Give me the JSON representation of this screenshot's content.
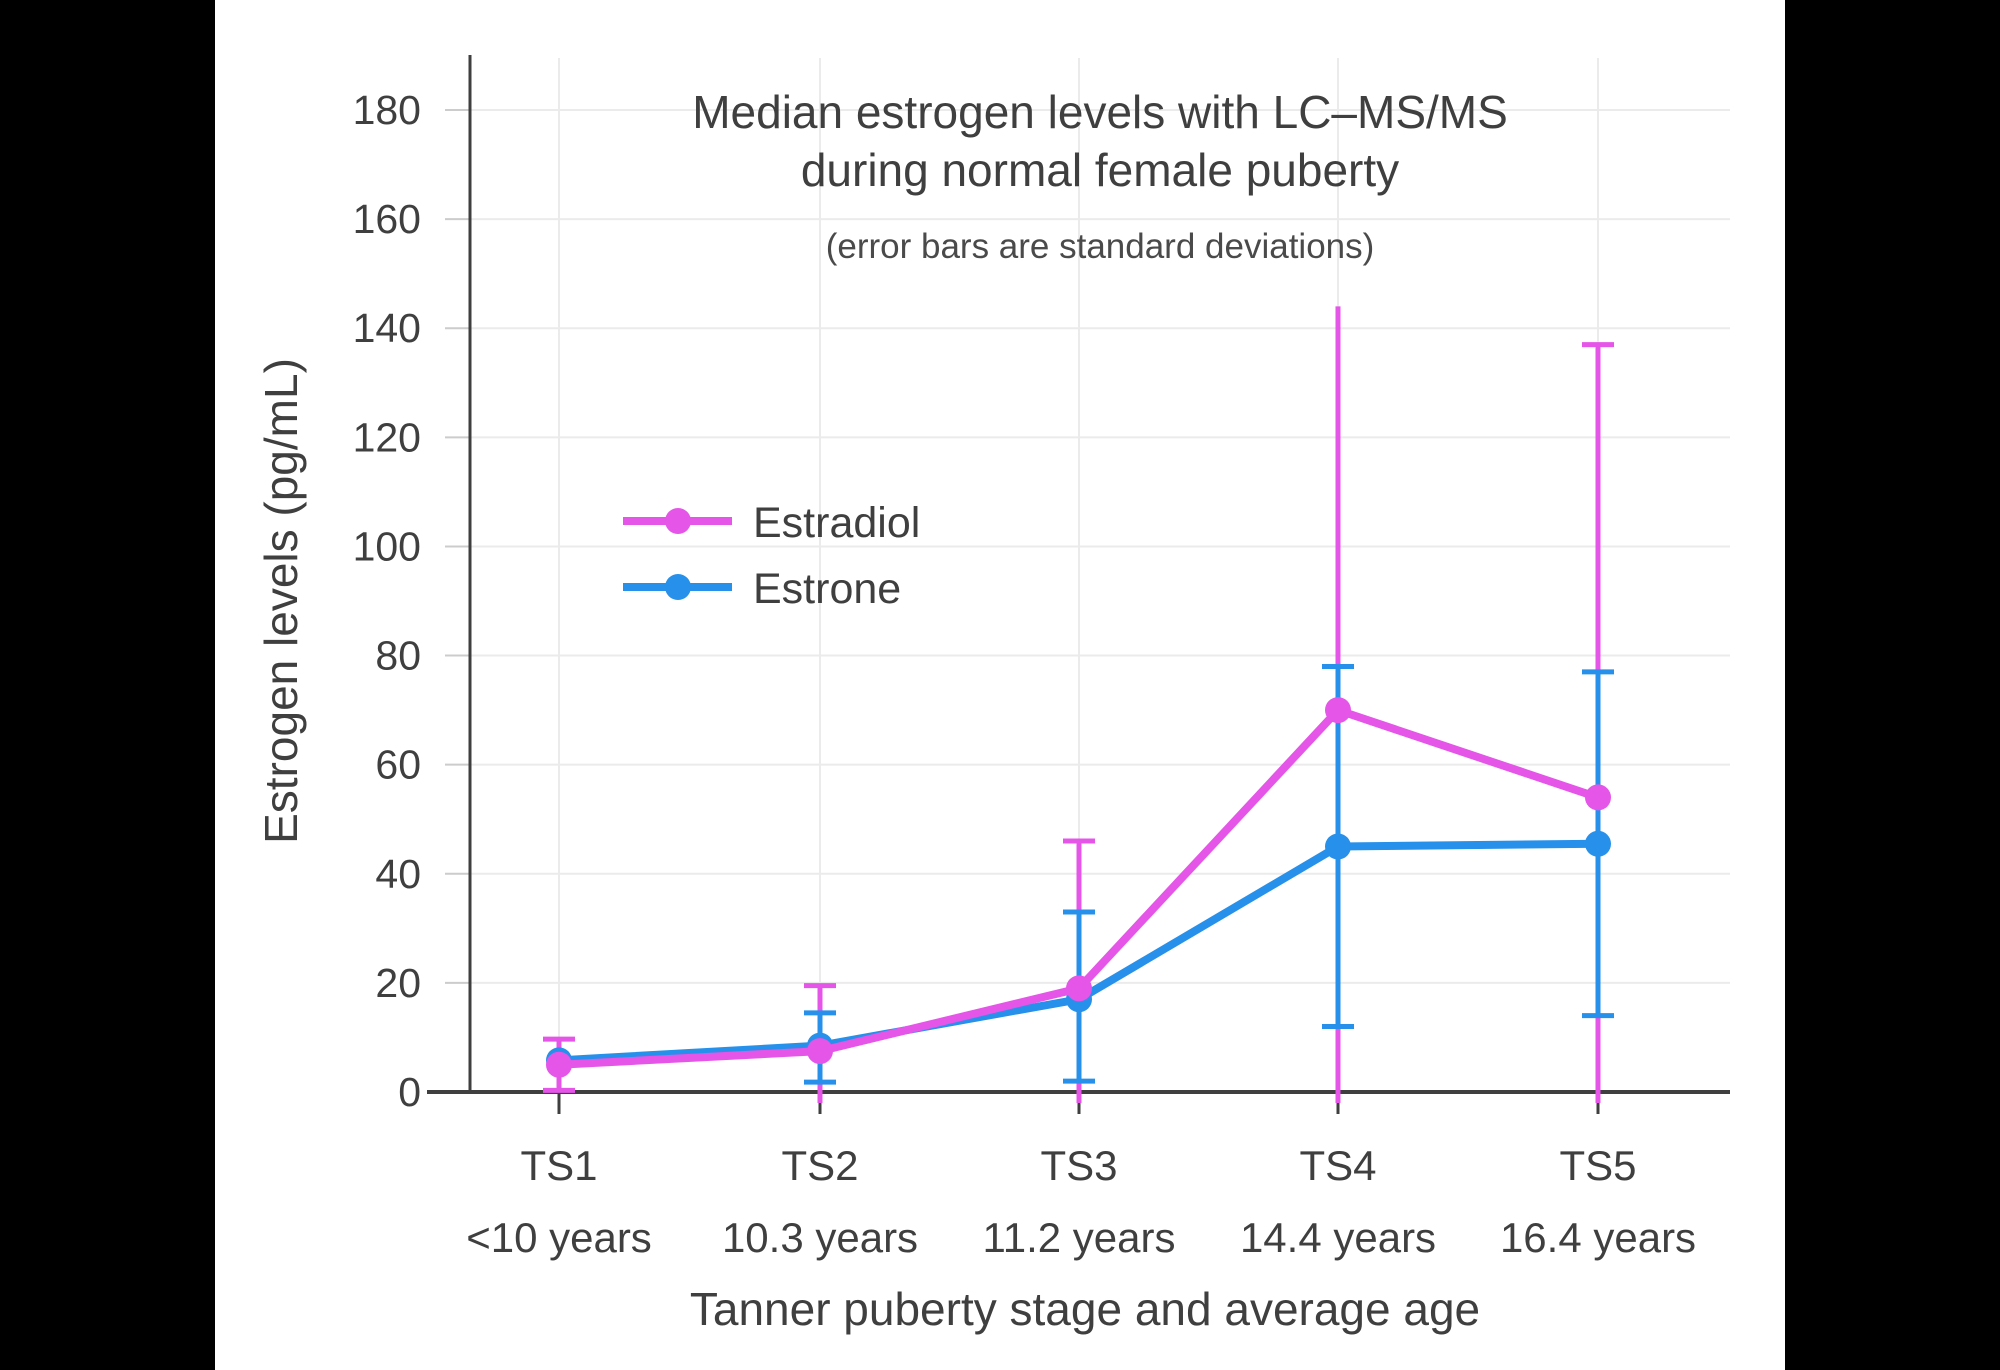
{
  "page": {
    "background_color": "#000000",
    "canvas_color": "#ffffff",
    "text_color": "#3F3F3F",
    "gridline_color": "#EBEBEB",
    "axis_color": "#3F3F3F",
    "y_tick_color": "#CCCCCC"
  },
  "chart_data": {
    "type": "line",
    "title_lines": [
      "Median estrogen levels with LC–MS/MS",
      "during normal female puberty"
    ],
    "subtitle": "(error bars are standard deviations)",
    "xlabel": "Tanner puberty stage and average age",
    "ylabel": "Estrogen levels (pg/mL)",
    "ylim": [
      0,
      190
    ],
    "y_ticks": [
      0,
      20,
      40,
      60,
      80,
      100,
      120,
      140,
      160,
      180
    ],
    "grid": true,
    "legend_position": "inside-upper-left",
    "categories": [
      {
        "stage": "TS1",
        "age": "<10 years"
      },
      {
        "stage": "TS2",
        "age": "10.3 years"
      },
      {
        "stage": "TS3",
        "age": "11.2 years"
      },
      {
        "stage": "TS4",
        "age": "14.4 years"
      },
      {
        "stage": "TS5",
        "age": "16.4 years"
      }
    ],
    "series": [
      {
        "name": "Estradiol",
        "color": "#E455E8",
        "unit": "pg/mL",
        "values": [
          5,
          7.5,
          19,
          70,
          54
        ],
        "error_high": [
          9.7,
          19.5,
          46,
          144,
          137
        ],
        "error_high_cap": [
          true,
          true,
          true,
          false,
          true
        ],
        "error_low": [
          0.3,
          -4,
          -8,
          -4,
          -29
        ],
        "error_low_cap": [
          true,
          false,
          false,
          false,
          false
        ]
      },
      {
        "name": "Estrone",
        "color": "#2790EA",
        "unit": "pg/mL",
        "values": [
          5.8,
          8.5,
          17,
          45,
          45.5
        ],
        "error_high": [
          null,
          14.5,
          33,
          78,
          77
        ],
        "error_high_cap": [
          false,
          true,
          true,
          true,
          true
        ],
        "error_low": [
          null,
          1.8,
          2,
          12,
          14
        ],
        "error_low_cap": [
          false,
          true,
          true,
          true,
          true
        ]
      }
    ]
  }
}
